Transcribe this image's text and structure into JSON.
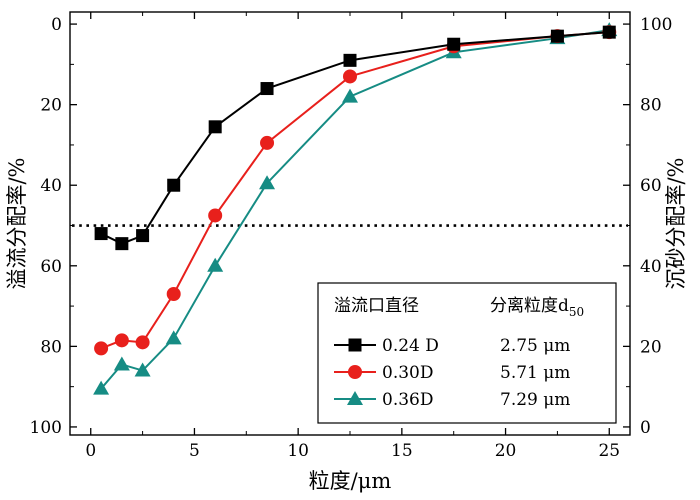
{
  "chart_data": {
    "type": "line",
    "xlabel": "粒度/μm",
    "ylabel_left": "溢流分配率/%",
    "ylabel_right": "沉砂分配率/%",
    "xlim": [
      -1,
      26
    ],
    "ylim_left": [
      102,
      -3
    ],
    "ylim_right": [
      -2,
      103
    ],
    "xticks": [
      0,
      5,
      10,
      15,
      20,
      25
    ],
    "yticks_left": [
      0,
      20,
      40,
      60,
      80,
      100
    ],
    "yticks_right": [
      0,
      20,
      40,
      60,
      80,
      100
    ],
    "reference_line": {
      "y": 50,
      "style": "dotted"
    },
    "legend": {
      "position": "bottom-right",
      "header_col1": "溢流口直径",
      "header_col2_prefix": "分离粒度d",
      "header_col2_sub": "50"
    },
    "series": [
      {
        "name": "0.24 D",
        "d50": "2.75 μm",
        "color": "#000000",
        "marker": "square",
        "x": [
          0.5,
          1.5,
          2.5,
          4,
          6,
          8.5,
          12.5,
          17.5,
          22.5,
          25
        ],
        "y": [
          52,
          54.5,
          52.5,
          40,
          25.5,
          16,
          9,
          5,
          3,
          2
        ]
      },
      {
        "name": "0.30D",
        "d50": "5.71 μm",
        "color": "#e8201c",
        "marker": "circle",
        "x": [
          0.5,
          1.5,
          2.5,
          4,
          6,
          8.5,
          12.5,
          17.5,
          22.5,
          25
        ],
        "y": [
          80.5,
          78.5,
          79,
          67,
          47.5,
          29.5,
          13,
          5.5,
          3,
          2
        ]
      },
      {
        "name": "0.36D",
        "d50": "7.29 μm",
        "color": "#168c84",
        "marker": "triangle",
        "x": [
          0.5,
          1.5,
          2.5,
          4,
          6,
          8.5,
          12.5,
          17.5,
          22.5,
          25
        ],
        "y": [
          90.5,
          84.5,
          86,
          78,
          60,
          39.5,
          18,
          7,
          3.5,
          1.5
        ]
      }
    ]
  }
}
